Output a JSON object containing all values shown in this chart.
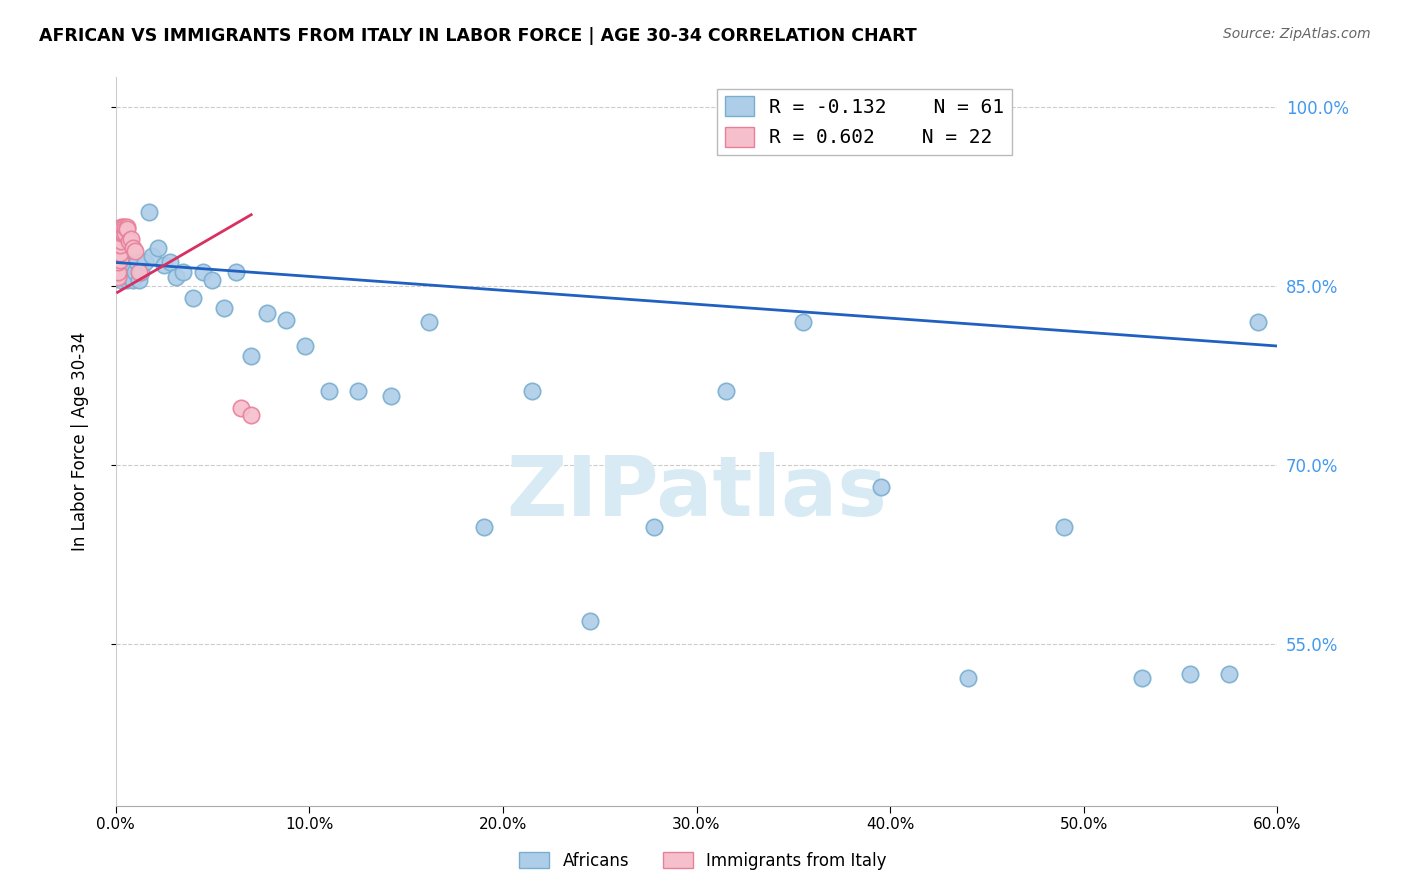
{
  "title": "AFRICAN VS IMMIGRANTS FROM ITALY IN LABOR FORCE | AGE 30-34 CORRELATION CHART",
  "source": "Source: ZipAtlas.com",
  "ylabel": "In Labor Force | Age 30-34",
  "xlim": [
    0.0,
    0.6
  ],
  "ylim": [
    0.415,
    1.025
  ],
  "xtick_vals": [
    0.0,
    0.1,
    0.2,
    0.3,
    0.4,
    0.5,
    0.6
  ],
  "ytick_right_vals": [
    0.55,
    0.7,
    0.85,
    1.0
  ],
  "legend_r1": "R = -0.132",
  "legend_n1": "N = 61",
  "legend_r2": "R = 0.602",
  "legend_n2": "N = 22",
  "africans_color": "#aecde8",
  "africans_edge": "#7aaed0",
  "italy_color": "#f5bfcc",
  "italy_edge": "#e8809a",
  "trend_blue": "#2060c0",
  "trend_pink": "#d83060",
  "watermark": "ZIPatlas",
  "watermark_color": "#d8ebf5",
  "africans_x": [
    0.001,
    0.001,
    0.001,
    0.002,
    0.002,
    0.002,
    0.002,
    0.003,
    0.003,
    0.003,
    0.003,
    0.004,
    0.004,
    0.004,
    0.005,
    0.005,
    0.005,
    0.006,
    0.006,
    0.007,
    0.007,
    0.008,
    0.009,
    0.01,
    0.011,
    0.012,
    0.013,
    0.015,
    0.017,
    0.019,
    0.022,
    0.025,
    0.028,
    0.031,
    0.035,
    0.04,
    0.045,
    0.05,
    0.056,
    0.062,
    0.07,
    0.078,
    0.088,
    0.098,
    0.11,
    0.125,
    0.142,
    0.162,
    0.19,
    0.215,
    0.245,
    0.278,
    0.315,
    0.355,
    0.395,
    0.44,
    0.49,
    0.53,
    0.555,
    0.575,
    0.59
  ],
  "africans_y": [
    0.868,
    0.872,
    0.875,
    0.87,
    0.865,
    0.878,
    0.862,
    0.872,
    0.868,
    0.86,
    0.855,
    0.87,
    0.862,
    0.875,
    0.868,
    0.858,
    0.865,
    0.862,
    0.855,
    0.858,
    0.862,
    0.868,
    0.855,
    0.862,
    0.87,
    0.855,
    0.862,
    0.87,
    0.912,
    0.875,
    0.882,
    0.868,
    0.87,
    0.858,
    0.862,
    0.84,
    0.862,
    0.855,
    0.832,
    0.862,
    0.792,
    0.828,
    0.822,
    0.8,
    0.762,
    0.762,
    0.758,
    0.82,
    0.648,
    0.762,
    0.57,
    0.648,
    0.762,
    0.82,
    0.682,
    0.522,
    0.648,
    0.522,
    0.525,
    0.525,
    0.82
  ],
  "italy_x": [
    0.001,
    0.001,
    0.001,
    0.002,
    0.002,
    0.002,
    0.003,
    0.003,
    0.003,
    0.004,
    0.004,
    0.005,
    0.005,
    0.006,
    0.006,
    0.007,
    0.008,
    0.009,
    0.01,
    0.012,
    0.065,
    0.07
  ],
  "italy_y": [
    0.858,
    0.862,
    0.87,
    0.872,
    0.878,
    0.885,
    0.888,
    0.895,
    0.9,
    0.895,
    0.9,
    0.895,
    0.9,
    0.9,
    0.898,
    0.888,
    0.89,
    0.882,
    0.88,
    0.862,
    0.748,
    0.742
  ],
  "blue_trend_x": [
    0.0,
    0.6
  ],
  "blue_trend_y": [
    0.87,
    0.8
  ],
  "pink_trend_x": [
    0.001,
    0.07
  ],
  "pink_trend_y": [
    0.845,
    0.91
  ]
}
